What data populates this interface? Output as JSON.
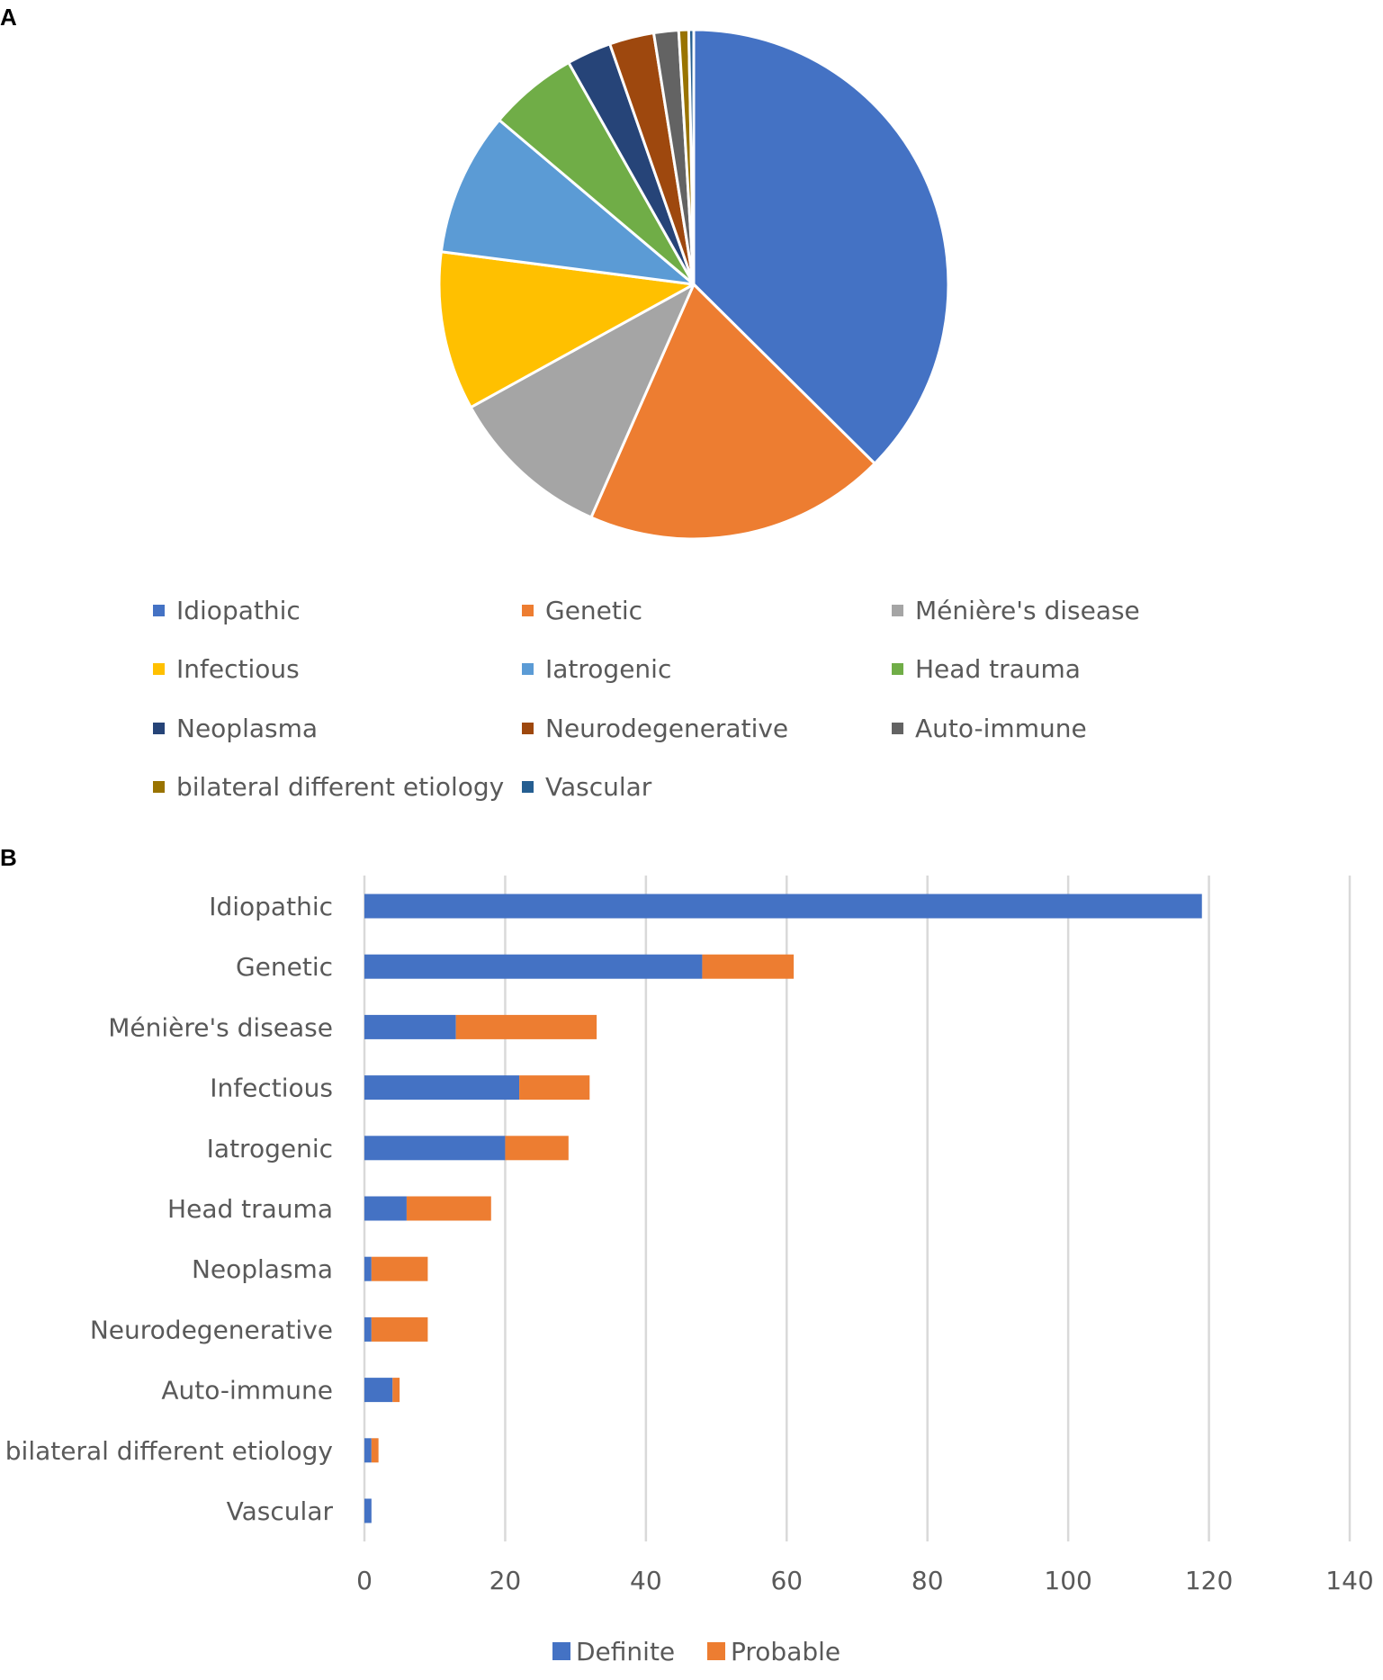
{
  "panels": {
    "a_label": "A",
    "b_label": "B"
  },
  "chart_data": [
    {
      "type": "pie",
      "title": "",
      "categories": [
        "Idiopathic",
        "Genetic",
        "Ménière's disease",
        "Infectious",
        "Iatrogenic",
        "Head trauma",
        "Neoplasma",
        "Neurodegenerative",
        "Auto-immune",
        "bilateral different etiology",
        "Vascular"
      ],
      "values": [
        119,
        61,
        33,
        32,
        29,
        18,
        9,
        9,
        5,
        2,
        1
      ],
      "colors": [
        "#4472C4",
        "#ED7D31",
        "#A5A5A5",
        "#FFC000",
        "#5B9BD5",
        "#70AD47",
        "#264478",
        "#9E480E",
        "#636363",
        "#997300",
        "#255E91"
      ],
      "legend": "bottom"
    },
    {
      "type": "bar",
      "orientation": "horizontal",
      "stacked": true,
      "categories": [
        "Idiopathic",
        "Genetic",
        "Ménière's disease",
        "Infectious",
        "Iatrogenic",
        "Head trauma",
        "Neoplasma",
        "Neurodegenerative",
        "Auto-immune",
        "bilateral different etiology",
        "Vascular"
      ],
      "series": [
        {
          "name": "Definite",
          "color": "#4472C4",
          "values": [
            119,
            48,
            13,
            22,
            20,
            6,
            1,
            1,
            4,
            1,
            1
          ]
        },
        {
          "name": "Probable",
          "color": "#ED7D31",
          "values": [
            0,
            13,
            20,
            10,
            9,
            12,
            8,
            8,
            1,
            1,
            0
          ]
        }
      ],
      "xlim": [
        0,
        140
      ],
      "xticks": [
        "0",
        "20",
        "40",
        "60",
        "80",
        "100",
        "120",
        "140"
      ],
      "xlabel": "",
      "ylabel": "",
      "grid": "vertical",
      "legend": "bottom"
    }
  ]
}
